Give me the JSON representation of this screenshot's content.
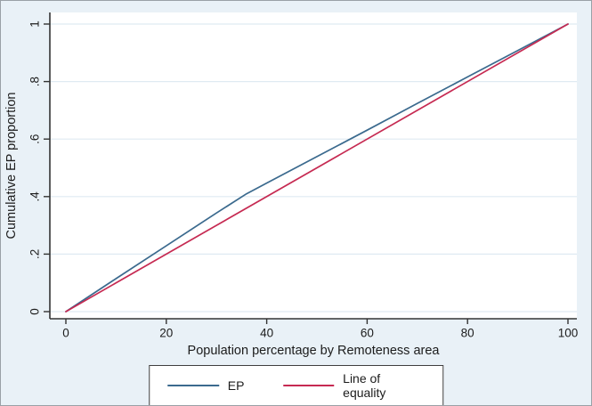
{
  "figure": {
    "background_color": "#e9f1f7",
    "plot_background": "#ffffff",
    "grid_color": "#dfeaf2",
    "axis_color": "#333333",
    "text_color": "#1c1c1c",
    "legend_border_color": "#3f3f3f"
  },
  "chart_data": {
    "type": "line",
    "title": "",
    "xlabel": "Population percentage by Remoteness area",
    "ylabel": "Cumulative EP proportion",
    "xlim": [
      0,
      100
    ],
    "ylim": [
      0,
      1
    ],
    "x_ticks": [
      0,
      20,
      40,
      60,
      80,
      100
    ],
    "x_tick_labels": [
      "0",
      "20",
      "40",
      "60",
      "80",
      "100"
    ],
    "y_ticks": [
      0,
      0.2,
      0.4,
      0.6,
      0.8,
      1
    ],
    "y_tick_labels": [
      "0",
      ".2",
      ".4",
      ".6",
      ".8",
      "1"
    ],
    "grid": "horizontal",
    "legend_position": "bottom-center",
    "series": [
      {
        "name": "EP",
        "color": "#3b6a8e",
        "x": [
          0,
          10,
          20,
          30,
          36,
          40,
          50,
          60,
          70,
          80,
          90,
          100
        ],
        "y": [
          0,
          0.115,
          0.229,
          0.343,
          0.41,
          0.447,
          0.539,
          0.631,
          0.724,
          0.816,
          0.908,
          1
        ]
      },
      {
        "name": "Line of equality",
        "color": "#c62a52",
        "x": [
          0,
          100
        ],
        "y": [
          0,
          1
        ]
      }
    ]
  }
}
